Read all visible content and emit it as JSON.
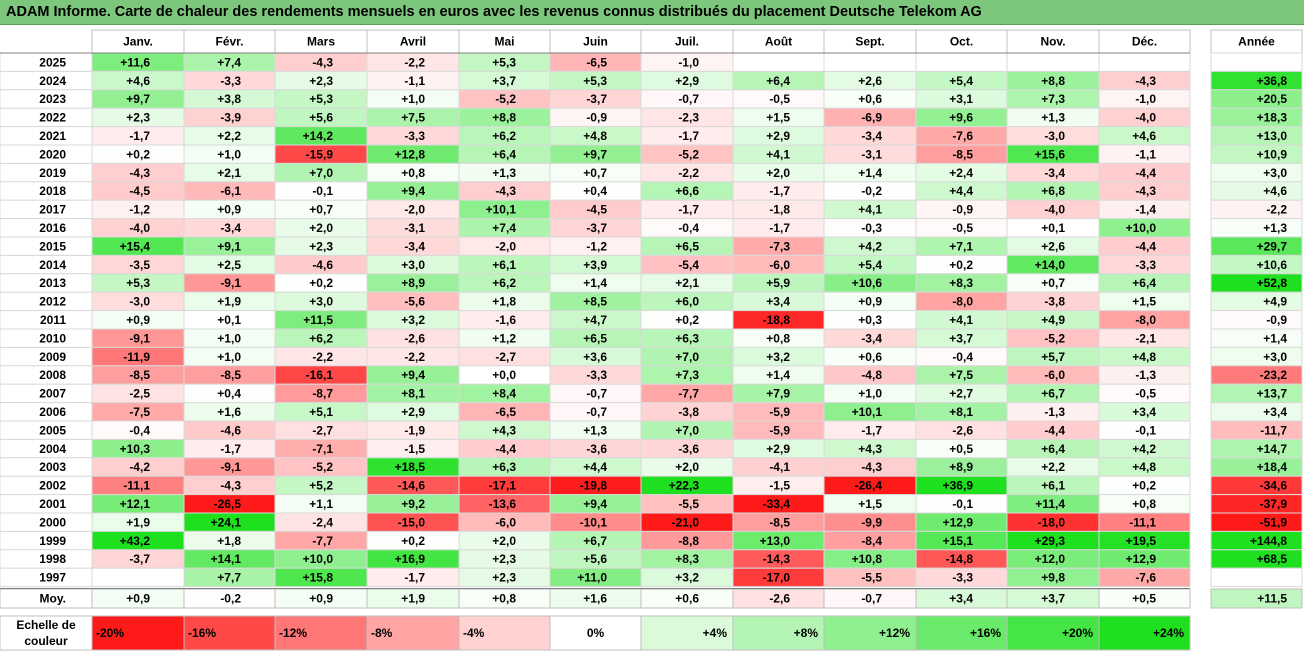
{
  "title": "ADAM Informe. Carte de chaleur des rendements mensuels en euros avec les revenus connus distribués du placement Deutsche Telekom AG",
  "chart_data": {
    "type": "heatmap",
    "months": [
      "Janv.",
      "Févr.",
      "Mars",
      "Avril",
      "Mai",
      "Juin",
      "Juil.",
      "Août",
      "Sept.",
      "Oct.",
      "Nov.",
      "Déc."
    ],
    "annual_header": "Année",
    "rows": [
      {
        "year": "2025",
        "values": [
          "+11,6",
          "+7,4",
          "-4,3",
          "-2,2",
          "+5,3",
          "-6,5",
          "-1,0",
          "",
          "",
          "",
          "",
          ""
        ],
        "annual": ""
      },
      {
        "year": "2024",
        "values": [
          "+4,6",
          "-3,3",
          "+2,3",
          "-1,1",
          "+3,7",
          "+5,3",
          "+2,9",
          "+6,4",
          "+2,6",
          "+5,4",
          "+8,8",
          "-4,3"
        ],
        "annual": "+36,8"
      },
      {
        "year": "2023",
        "values": [
          "+9,7",
          "+3,8",
          "+5,3",
          "+1,0",
          "-5,2",
          "-3,7",
          "-0,7",
          "-0,5",
          "+0,6",
          "+3,1",
          "+7,3",
          "-1,0"
        ],
        "annual": "+20,5"
      },
      {
        "year": "2022",
        "values": [
          "+2,3",
          "-3,9",
          "+5,6",
          "+7,5",
          "+8,8",
          "-0,9",
          "-2,3",
          "+1,5",
          "-6,9",
          "+9,6",
          "+1,3",
          "-4,0"
        ],
        "annual": "+18,3"
      },
      {
        "year": "2021",
        "values": [
          "-1,7",
          "+2,2",
          "+14,2",
          "-3,3",
          "+6,2",
          "+4,8",
          "-1,7",
          "+2,9",
          "-3,4",
          "-7,6",
          "-3,0",
          "+4,6"
        ],
        "annual": "+13,0"
      },
      {
        "year": "2020",
        "values": [
          "+0,2",
          "+1,0",
          "-15,9",
          "+12,8",
          "+6,4",
          "+9,7",
          "-5,2",
          "+4,1",
          "-3,1",
          "-8,5",
          "+15,6",
          "-1,1"
        ],
        "annual": "+10,9"
      },
      {
        "year": "2019",
        "values": [
          "-4,3",
          "+2,1",
          "+7,0",
          "+0,8",
          "+1,3",
          "+0,7",
          "-2,2",
          "+2,0",
          "+1,4",
          "+2,4",
          "-3,4",
          "-4,4"
        ],
        "annual": "+3,0"
      },
      {
        "year": "2018",
        "values": [
          "-4,5",
          "-6,1",
          "-0,1",
          "+9,4",
          "-4,3",
          "+0,4",
          "+6,6",
          "-1,7",
          "-0,2",
          "+4,4",
          "+6,8",
          "-4,3"
        ],
        "annual": "+4,6"
      },
      {
        "year": "2017",
        "values": [
          "-1,2",
          "+0,9",
          "+0,7",
          "-2,0",
          "+10,1",
          "-4,5",
          "-1,7",
          "-1,8",
          "+4,1",
          "-0,9",
          "-4,0",
          "-1,4"
        ],
        "annual": "-2,2"
      },
      {
        "year": "2016",
        "values": [
          "-4,0",
          "-3,4",
          "+2,0",
          "-3,1",
          "+7,4",
          "-3,7",
          "-0,4",
          "-1,7",
          "-0,3",
          "-0,5",
          "+0,1",
          "+10,0"
        ],
        "annual": "+1,3"
      },
      {
        "year": "2015",
        "values": [
          "+15,4",
          "+9,1",
          "+2,3",
          "-3,4",
          "-2,0",
          "-1,2",
          "+6,5",
          "-7,3",
          "+4,2",
          "+7,1",
          "+2,6",
          "-4,4"
        ],
        "annual": "+29,7"
      },
      {
        "year": "2014",
        "values": [
          "-3,5",
          "+2,5",
          "-4,6",
          "+3,0",
          "+6,1",
          "+3,9",
          "-5,4",
          "-6,0",
          "+5,4",
          "+0,2",
          "+14,0",
          "-3,3"
        ],
        "annual": "+10,6"
      },
      {
        "year": "2013",
        "values": [
          "+5,3",
          "-9,1",
          "+0,2",
          "+8,9",
          "+6,2",
          "+1,4",
          "+2,1",
          "+5,9",
          "+10,6",
          "+8,3",
          "+0,7",
          "+6,4"
        ],
        "annual": "+52,8"
      },
      {
        "year": "2012",
        "values": [
          "-3,0",
          "+1,9",
          "+3,0",
          "-5,6",
          "+1,8",
          "+8,5",
          "+6,0",
          "+3,4",
          "+0,9",
          "-8,0",
          "-3,8",
          "+1,5"
        ],
        "annual": "+4,9"
      },
      {
        "year": "2011",
        "values": [
          "+0,9",
          "+0,1",
          "+11,5",
          "+3,2",
          "-1,6",
          "+4,7",
          "+0,2",
          "-18,8",
          "+0,3",
          "+4,1",
          "+4,9",
          "-8,0"
        ],
        "annual": "-0,9"
      },
      {
        "year": "2010",
        "values": [
          "-9,1",
          "+1,0",
          "+6,2",
          "-2,6",
          "+1,2",
          "+6,5",
          "+6,3",
          "+0,8",
          "-3,4",
          "+3,7",
          "-5,2",
          "-2,1"
        ],
        "annual": "+1,4"
      },
      {
        "year": "2009",
        "values": [
          "-11,9",
          "+1,0",
          "-2,2",
          "-2,2",
          "-2,7",
          "+3,6",
          "+7,0",
          "+3,2",
          "+0,6",
          "-0,4",
          "+5,7",
          "+4,8"
        ],
        "annual": "+3,0"
      },
      {
        "year": "2008",
        "values": [
          "-8,5",
          "-8,5",
          "-16,1",
          "+9,4",
          "+0,0",
          "-3,3",
          "+7,3",
          "+1,4",
          "-4,8",
          "+7,5",
          "-6,0",
          "-1,3"
        ],
        "annual": "-23,2"
      },
      {
        "year": "2007",
        "values": [
          "-2,5",
          "+0,4",
          "-8,7",
          "+8,1",
          "+8,4",
          "-0,7",
          "-7,7",
          "+7,9",
          "+1,0",
          "+2,7",
          "+6,7",
          "-0,5"
        ],
        "annual": "+13,7"
      },
      {
        "year": "2006",
        "values": [
          "-7,5",
          "+1,6",
          "+5,1",
          "+2,9",
          "-6,5",
          "-0,7",
          "-3,8",
          "-5,9",
          "+10,1",
          "+8,1",
          "-1,3",
          "+3,4"
        ],
        "annual": "+3,4"
      },
      {
        "year": "2005",
        "values": [
          "-0,4",
          "-4,6",
          "-2,7",
          "-1,9",
          "+4,3",
          "+1,3",
          "+7,0",
          "-5,9",
          "-1,7",
          "-2,6",
          "-4,4",
          "-0,1"
        ],
        "annual": "-11,7"
      },
      {
        "year": "2004",
        "values": [
          "+10,3",
          "-1,7",
          "-7,1",
          "-1,5",
          "-4,4",
          "-3,6",
          "-3,6",
          "+2,9",
          "+4,3",
          "+0,5",
          "+6,4",
          "+4,2"
        ],
        "annual": "+14,7"
      },
      {
        "year": "2003",
        "values": [
          "-4,2",
          "-9,1",
          "-5,2",
          "+18,5",
          "+6,3",
          "+4,4",
          "+2,0",
          "-4,1",
          "-4,3",
          "+8,9",
          "+2,2",
          "+4,8"
        ],
        "annual": "+18,4"
      },
      {
        "year": "2002",
        "values": [
          "-11,1",
          "-4,3",
          "+5,2",
          "-14,6",
          "-17,1",
          "-19,8",
          "+22,3",
          "-1,5",
          "-26,4",
          "+36,9",
          "+6,1",
          "+0,2"
        ],
        "annual": "-34,6"
      },
      {
        "year": "2001",
        "values": [
          "+12,1",
          "-26,5",
          "+1,1",
          "+9,2",
          "-13,6",
          "+9,4",
          "-5,5",
          "-33,4",
          "+1,5",
          "-0,1",
          "+11,4",
          "+0,8"
        ],
        "annual": "-37,9"
      },
      {
        "year": "2000",
        "values": [
          "+1,9",
          "+24,1",
          "-2,4",
          "-15,0",
          "-6,0",
          "-10,1",
          "-21,0",
          "-8,5",
          "-9,9",
          "+12,9",
          "-18,0",
          "-11,1"
        ],
        "annual": "-51,9"
      },
      {
        "year": "1999",
        "values": [
          "+43,2",
          "+1,8",
          "-7,7",
          "+0,2",
          "+2,0",
          "+6,7",
          "-8,8",
          "+13,0",
          "-8,4",
          "+15,1",
          "+29,3",
          "+19,5"
        ],
        "annual": "+144,8"
      },
      {
        "year": "1998",
        "values": [
          "-3,7",
          "+14,1",
          "+10,0",
          "+16,9",
          "+2,3",
          "+5,6",
          "+8,3",
          "-14,3",
          "+10,8",
          "-14,8",
          "+12,0",
          "+12,9"
        ],
        "annual": "+68,5"
      },
      {
        "year": "1997",
        "values": [
          "",
          "+7,7",
          "+15,8",
          "-1,7",
          "+2,3",
          "+11,0",
          "+3,2",
          "-17,0",
          "-5,5",
          "-3,3",
          "+9,8",
          "-7,6"
        ],
        "annual": ""
      }
    ],
    "average": {
      "label": "Moy.",
      "values": [
        "+0,9",
        "-0,2",
        "+0,9",
        "+1,9",
        "+0,8",
        "+1,6",
        "+0,6",
        "-2,6",
        "-0,7",
        "+3,4",
        "+3,7",
        "+0,5"
      ],
      "annual": "+11,5"
    },
    "scale": {
      "label_line1": "Echelle de",
      "label_line2": "couleur",
      "items": [
        "-20%",
        "-16%",
        "-12%",
        "-8%",
        "-4%",
        "0%",
        "+4%",
        "+8%",
        "+12%",
        "+16%",
        "+20%",
        "+24%"
      ]
    },
    "colors": {
      "negative_max": "#ff1a1a",
      "neutral": "#ffffff",
      "positive_max": "#1fe01f"
    }
  }
}
